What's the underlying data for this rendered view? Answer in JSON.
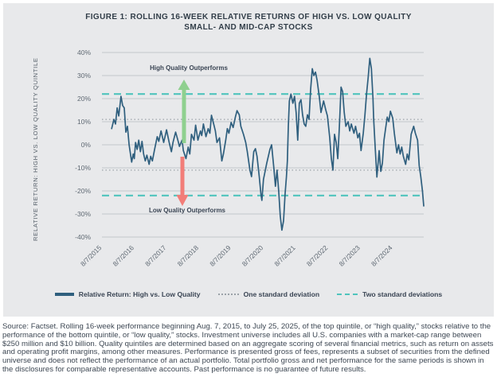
{
  "figure": {
    "title_line1": "FIGURE 1: ROLLING 16-WEEK RELATIVE RETURNS OF HIGH VS. LOW QUALITY",
    "title_line2": "SMALL- AND MID-CAP STOCKS"
  },
  "annotations": {
    "high": "High Quality Outperforms",
    "low": "Low Quality Outperforms"
  },
  "legend": [
    {
      "label": "Relative Return: High vs. Low Quality",
      "style": "solid",
      "color": "#2f5f7e"
    },
    {
      "label": "One standard deviation",
      "style": "dotted",
      "color": "#9ba2a9"
    },
    {
      "label": "Two standard deviations",
      "style": "dashed",
      "color": "#4fc4bd"
    }
  ],
  "footnote": "Source: Factset. Rolling 16-week performance beginning Aug. 7, 2015, to July 25, 2025, of the top quintile, or “high quality,” stocks relative to the performance of the bottom quintile, or “low quality,” stocks. Investment universe includes all U.S. companies with a market-cap range between $250 million and $10 billion. Quality quintiles are determined based on an aggregate scoring of several financial metrics, such as return on assets and operating profit margins, among other measures. Performance is presented gross of fees, represents a subset of securities from the defined universe and does not reflect the performance of an actual portfolio. Total portfolio gross and net performance for the same periods is shown in the disclosures for comparable representative accounts. Past performance is no guarantee of future results.",
  "colors": {
    "panel_background": "#e8e9eb",
    "gridline": "#c2c6cb",
    "series_line": "#2f5f7e",
    "one_std_line": "#9ba2a9",
    "two_std_line": "#4fc4bd",
    "up_arrow": "#8fd08f",
    "down_arrow": "#f27d78",
    "title_text": "#323e49",
    "tick_text": "#5f6973"
  },
  "chart_data": {
    "type": "line",
    "title": "FIGURE 1: ROLLING 16-WEEK RELATIVE RETURNS OF HIGH VS. LOW QUALITY SMALL- AND MID-CAP STOCKS",
    "xlabel": "",
    "ylabel": "RELATIVE RETURN: HIGH VS. LOW QUALITY QUINTILE",
    "x_range": [
      2015.6,
      2025.56
    ],
    "ylim": [
      -40,
      40
    ],
    "grid": true,
    "legend_position": "bottom",
    "x_tick_labels": [
      "8/7/2015",
      "8/7/2016",
      "8/7/2017",
      "8/7/2018",
      "8/7/2019",
      "8/7/2020",
      "8/7/2021",
      "8/7/2022",
      "8/7/2023",
      "8/7/2024"
    ],
    "x_tick_values": [
      2015.6,
      2016.6,
      2017.6,
      2018.6,
      2019.6,
      2020.6,
      2021.6,
      2022.6,
      2023.6,
      2024.6
    ],
    "y_tick_labels": [
      "40%",
      "30%",
      "20%",
      "10%",
      "0%",
      "-10%",
      "-20%",
      "-30%",
      "-40%"
    ],
    "y_tick_values": [
      40,
      30,
      20,
      10,
      0,
      -10,
      -20,
      -30,
      -40
    ],
    "reference_lines": {
      "one_standard_deviation": [
        11,
        -11
      ],
      "two_standard_deviations": [
        22,
        -22
      ]
    },
    "series": [
      {
        "name": "Relative Return: High vs. Low Quality",
        "units": "percent",
        "points": [
          [
            2015.9,
            7
          ],
          [
            2015.97,
            11
          ],
          [
            2016.02,
            9
          ],
          [
            2016.07,
            16
          ],
          [
            2016.12,
            12.5
          ],
          [
            2016.19,
            21
          ],
          [
            2016.24,
            17
          ],
          [
            2016.29,
            16
          ],
          [
            2016.34,
            5.5
          ],
          [
            2016.39,
            8
          ],
          [
            2016.44,
            0
          ],
          [
            2016.52,
            -7.5
          ],
          [
            2016.57,
            -4
          ],
          [
            2016.6,
            -6
          ],
          [
            2016.64,
            1
          ],
          [
            2016.69,
            -2
          ],
          [
            2016.74,
            2
          ],
          [
            2016.79,
            -3
          ],
          [
            2016.84,
            1.5
          ],
          [
            2016.89,
            -4
          ],
          [
            2016.94,
            -7
          ],
          [
            2016.99,
            -4.5
          ],
          [
            2017.06,
            -8.5
          ],
          [
            2017.11,
            -5
          ],
          [
            2017.16,
            -7
          ],
          [
            2017.23,
            -2
          ],
          [
            2017.31,
            3.5
          ],
          [
            2017.36,
            1.5
          ],
          [
            2017.43,
            6
          ],
          [
            2017.51,
            1
          ],
          [
            2017.56,
            4
          ],
          [
            2017.6,
            6.5
          ],
          [
            2017.68,
            1
          ],
          [
            2017.75,
            -3
          ],
          [
            2017.8,
            1
          ],
          [
            2017.88,
            5.5
          ],
          [
            2017.95,
            2
          ],
          [
            2018.0,
            -0.7
          ],
          [
            2018.08,
            2
          ],
          [
            2018.12,
            -2.5
          ],
          [
            2018.2,
            -6
          ],
          [
            2018.27,
            -1
          ],
          [
            2018.32,
            -4
          ],
          [
            2018.37,
            4.5
          ],
          [
            2018.45,
            2
          ],
          [
            2018.5,
            8.5
          ],
          [
            2018.57,
            2
          ],
          [
            2018.65,
            6
          ],
          [
            2018.69,
            4
          ],
          [
            2018.74,
            9
          ],
          [
            2018.82,
            3.5
          ],
          [
            2018.89,
            7
          ],
          [
            2018.94,
            5
          ],
          [
            2018.99,
            12.8
          ],
          [
            2019.06,
            9
          ],
          [
            2019.11,
            6
          ],
          [
            2019.16,
            1
          ],
          [
            2019.24,
            3
          ],
          [
            2019.31,
            -7
          ],
          [
            2019.36,
            -4
          ],
          [
            2019.43,
            2
          ],
          [
            2019.48,
            7
          ],
          [
            2019.53,
            5
          ],
          [
            2019.6,
            9.7
          ],
          [
            2019.66,
            7.5
          ],
          [
            2019.73,
            12
          ],
          [
            2019.78,
            14.8
          ],
          [
            2019.85,
            13
          ],
          [
            2019.9,
            8
          ],
          [
            2019.98,
            4.5
          ],
          [
            2020.05,
            1
          ],
          [
            2020.1,
            -3
          ],
          [
            2020.18,
            -11
          ],
          [
            2020.23,
            -13.8
          ],
          [
            2020.3,
            -3
          ],
          [
            2020.35,
            -1.7
          ],
          [
            2020.4,
            -5
          ],
          [
            2020.47,
            -13.8
          ],
          [
            2020.52,
            -21.4
          ],
          [
            2020.55,
            -24.1
          ],
          [
            2020.6,
            -15
          ],
          [
            2020.7,
            -8
          ],
          [
            2020.8,
            -2
          ],
          [
            2020.85,
            0
          ],
          [
            2020.92,
            -10
          ],
          [
            2020.97,
            -18
          ],
          [
            2021.02,
            -11
          ],
          [
            2021.07,
            -20
          ],
          [
            2021.12,
            -31
          ],
          [
            2021.17,
            -37
          ],
          [
            2021.22,
            -33
          ],
          [
            2021.27,
            -21
          ],
          [
            2021.31,
            -14
          ],
          [
            2021.34,
            -7
          ],
          [
            2021.37,
            8
          ],
          [
            2021.4,
            19
          ],
          [
            2021.45,
            22
          ],
          [
            2021.51,
            18
          ],
          [
            2021.56,
            21
          ],
          [
            2021.61,
            14
          ],
          [
            2021.66,
            2
          ],
          [
            2021.71,
            18
          ],
          [
            2021.76,
            19.5
          ],
          [
            2021.81,
            13
          ],
          [
            2021.86,
            9
          ],
          [
            2021.91,
            8
          ],
          [
            2021.96,
            13
          ],
          [
            2022.01,
            11
          ],
          [
            2022.06,
            24
          ],
          [
            2022.11,
            33
          ],
          [
            2022.16,
            30
          ],
          [
            2022.21,
            31.5
          ],
          [
            2022.26,
            28
          ],
          [
            2022.33,
            20.5
          ],
          [
            2022.38,
            14
          ],
          [
            2022.46,
            19
          ],
          [
            2022.53,
            15
          ],
          [
            2022.58,
            12.5
          ],
          [
            2022.65,
            3
          ],
          [
            2022.7,
            -6
          ],
          [
            2022.75,
            -11
          ],
          [
            2022.8,
            4.5
          ],
          [
            2022.85,
            1
          ],
          [
            2022.9,
            -6
          ],
          [
            2022.95,
            8
          ],
          [
            2023.0,
            25
          ],
          [
            2023.05,
            23
          ],
          [
            2023.1,
            14
          ],
          [
            2023.15,
            8
          ],
          [
            2023.22,
            10
          ],
          [
            2023.27,
            6
          ],
          [
            2023.32,
            9
          ],
          [
            2023.4,
            5
          ],
          [
            2023.45,
            8
          ],
          [
            2023.52,
            3
          ],
          [
            2023.57,
            5
          ],
          [
            2023.62,
            -2.5
          ],
          [
            2023.69,
            5
          ],
          [
            2023.74,
            13
          ],
          [
            2023.79,
            22
          ],
          [
            2023.84,
            29
          ],
          [
            2023.89,
            37.5
          ],
          [
            2023.94,
            33
          ],
          [
            2023.99,
            20
          ],
          [
            2024.01,
            11.5
          ],
          [
            2024.06,
            -2
          ],
          [
            2024.11,
            -14
          ],
          [
            2024.16,
            -6
          ],
          [
            2024.18,
            -2.5
          ],
          [
            2024.23,
            -11.5
          ],
          [
            2024.28,
            -8
          ],
          [
            2024.33,
            2
          ],
          [
            2024.38,
            7
          ],
          [
            2024.43,
            12
          ],
          [
            2024.48,
            10
          ],
          [
            2024.53,
            14.5
          ],
          [
            2024.6,
            11.5
          ],
          [
            2024.65,
            5
          ],
          [
            2024.73,
            -3.5
          ],
          [
            2024.78,
            0
          ],
          [
            2024.83,
            -4
          ],
          [
            2024.88,
            -1
          ],
          [
            2024.93,
            -5
          ],
          [
            2025.0,
            -8.5
          ],
          [
            2025.05,
            -4
          ],
          [
            2025.1,
            -6.5
          ],
          [
            2025.17,
            4.5
          ],
          [
            2025.25,
            8
          ],
          [
            2025.3,
            5
          ],
          [
            2025.37,
            2
          ],
          [
            2025.42,
            -9
          ],
          [
            2025.47,
            -13.8
          ],
          [
            2025.52,
            -20
          ],
          [
            2025.56,
            -26.5
          ]
        ]
      }
    ]
  }
}
